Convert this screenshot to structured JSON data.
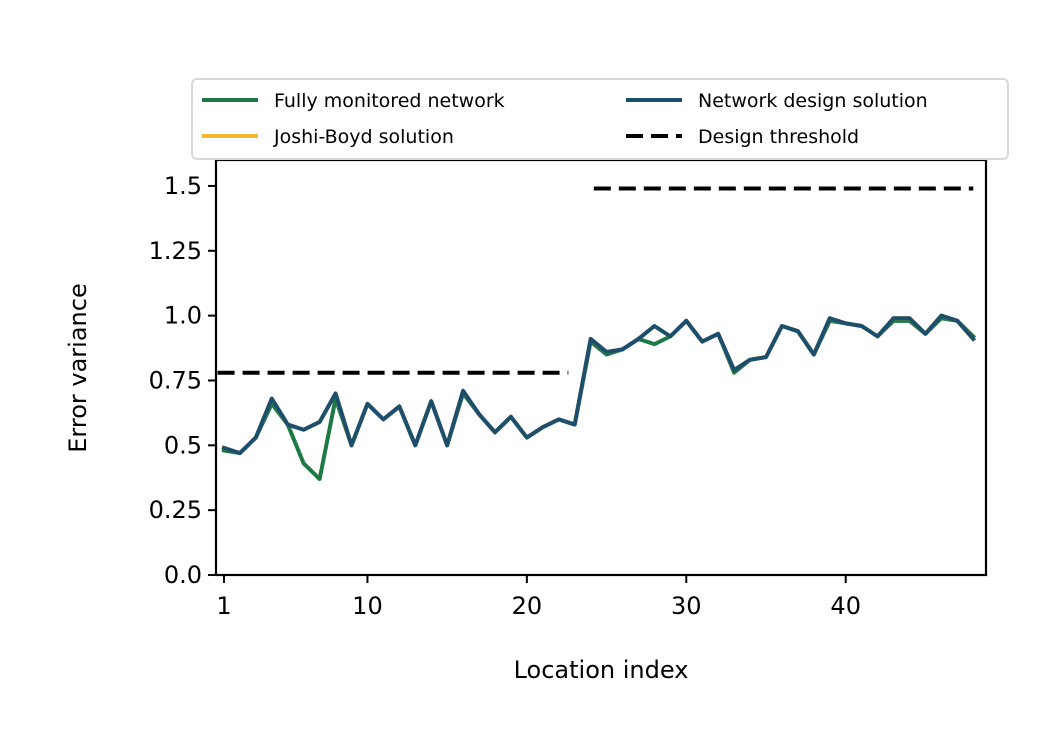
{
  "chart_data": {
    "type": "line",
    "xlabel": "Location index",
    "ylabel": "Error variance",
    "xlim": [
      0.5,
      48.8
    ],
    "ylim": [
      0.0,
      1.6
    ],
    "xticks": [
      {
        "value": 1,
        "label": "1"
      },
      {
        "value": 10,
        "label": "10"
      },
      {
        "value": 20,
        "label": "20"
      },
      {
        "value": 30,
        "label": "30"
      },
      {
        "value": 40,
        "label": "40"
      }
    ],
    "yticks": [
      {
        "value": 0.0,
        "label": "0.0"
      },
      {
        "value": 0.25,
        "label": "0.25"
      },
      {
        "value": 0.5,
        "label": "0.5"
      },
      {
        "value": 0.75,
        "label": "0.75"
      },
      {
        "value": 1.0,
        "label": "1.0"
      },
      {
        "value": 1.25,
        "label": "1.25"
      },
      {
        "value": 1.5,
        "label": "1.5"
      }
    ],
    "grid": false,
    "legend_position": "top, above plot (2 columns)",
    "x": [
      1,
      2,
      3,
      4,
      5,
      6,
      7,
      8,
      9,
      10,
      11,
      12,
      13,
      14,
      15,
      16,
      17,
      18,
      19,
      20,
      21,
      22,
      23,
      24,
      25,
      26,
      27,
      28,
      29,
      30,
      31,
      32,
      33,
      34,
      35,
      36,
      37,
      38,
      39,
      40,
      41,
      42,
      43,
      44,
      45,
      46,
      47,
      48
    ],
    "series": [
      {
        "name": "Fully monitored network",
        "color": "#1b7a43",
        "style": "solid",
        "values": [
          0.48,
          0.47,
          0.53,
          0.66,
          0.58,
          0.43,
          0.37,
          0.68,
          0.5,
          0.66,
          0.6,
          0.65,
          0.5,
          0.67,
          0.5,
          0.7,
          0.62,
          0.55,
          0.61,
          0.53,
          0.57,
          0.6,
          0.58,
          0.9,
          0.85,
          0.87,
          0.91,
          0.89,
          0.92,
          0.98,
          0.9,
          0.93,
          0.78,
          0.83,
          0.84,
          0.96,
          0.94,
          0.85,
          0.98,
          0.97,
          0.96,
          0.92,
          0.98,
          0.98,
          0.93,
          0.99,
          0.98,
          0.92
        ]
      },
      {
        "name": "Joshi-Boyd solution",
        "color": "#f5b731",
        "style": "solid",
        "values": [
          0.49,
          0.47,
          0.53,
          0.68,
          0.58,
          0.56,
          0.59,
          0.7,
          0.5,
          0.66,
          0.6,
          0.65,
          0.5,
          0.67,
          0.5,
          0.71,
          0.62,
          0.55,
          0.61,
          0.53,
          0.57,
          0.6,
          0.58,
          0.91,
          0.86,
          0.87,
          0.91,
          0.96,
          0.92,
          0.98,
          0.9,
          0.93,
          0.79,
          0.83,
          0.84,
          0.96,
          0.94,
          0.85,
          0.99,
          0.97,
          0.96,
          0.92,
          0.99,
          0.99,
          0.93,
          1.0,
          0.98,
          0.91
        ]
      },
      {
        "name": "Network design solution",
        "color": "#1c4e6e",
        "style": "solid",
        "values": [
          0.49,
          0.47,
          0.53,
          0.68,
          0.58,
          0.56,
          0.59,
          0.7,
          0.5,
          0.66,
          0.6,
          0.65,
          0.5,
          0.67,
          0.5,
          0.71,
          0.62,
          0.55,
          0.61,
          0.53,
          0.57,
          0.6,
          0.58,
          0.91,
          0.86,
          0.87,
          0.91,
          0.96,
          0.92,
          0.98,
          0.9,
          0.93,
          0.79,
          0.83,
          0.84,
          0.96,
          0.94,
          0.85,
          0.99,
          0.97,
          0.96,
          0.92,
          0.99,
          0.99,
          0.93,
          1.0,
          0.98,
          0.91
        ]
      },
      {
        "name": "Design threshold",
        "color": "#000000",
        "style": "dashed",
        "segments": [
          {
            "x": [
              0.6,
              22.6
            ],
            "y": [
              0.78,
              0.78
            ]
          },
          {
            "x": [
              24.2,
              48.0
            ],
            "y": [
              1.49,
              1.49
            ]
          }
        ]
      }
    ]
  }
}
